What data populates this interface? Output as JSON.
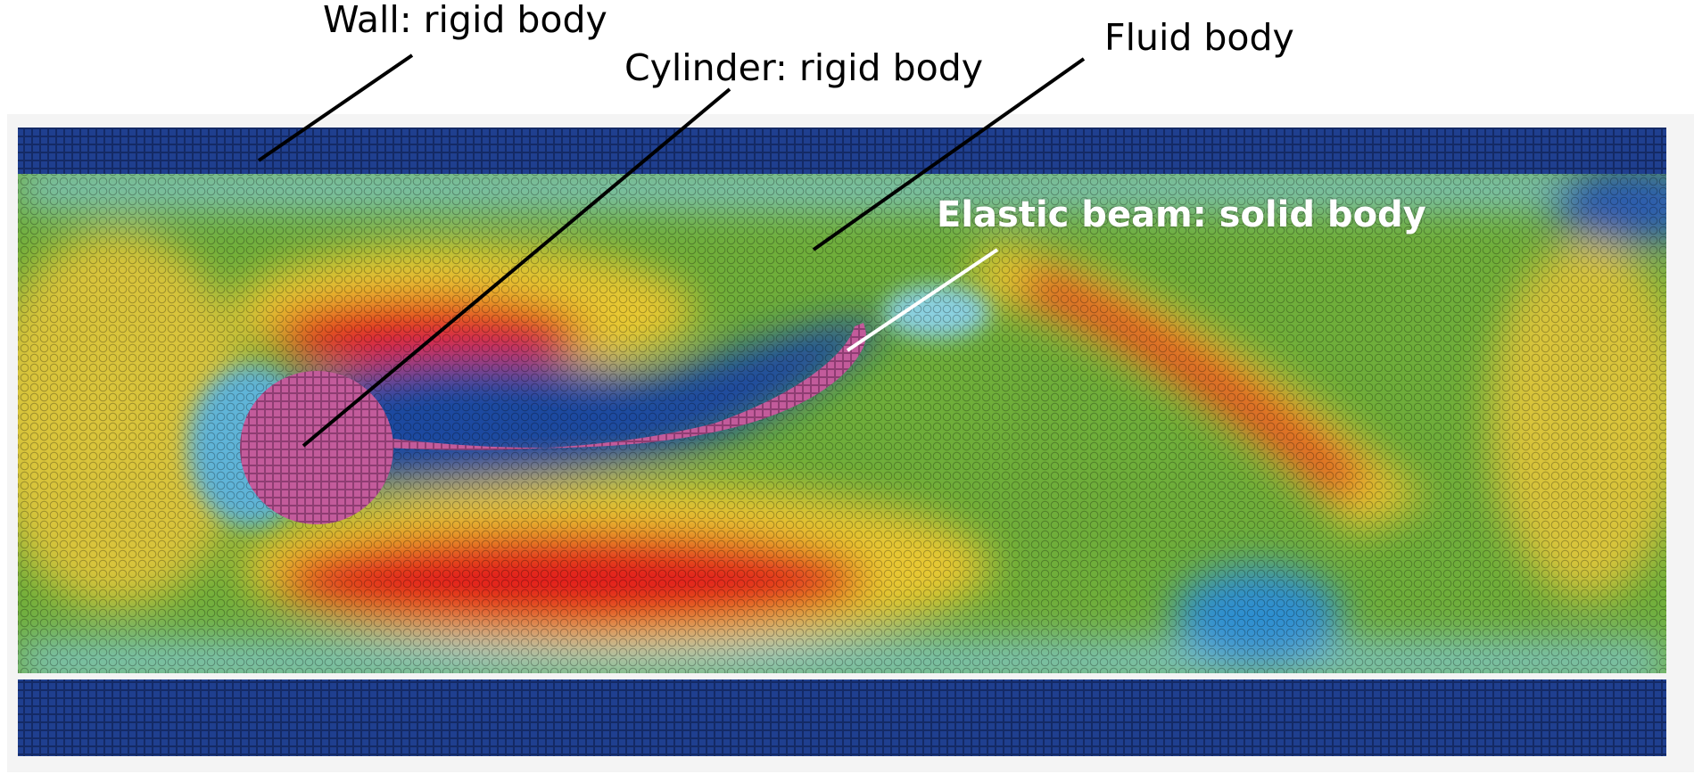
{
  "labels": {
    "wall": "Wall: rigid body",
    "cylinder": "Cylinder: rigid body",
    "fluid": "Fluid body",
    "beam": "Elastic beam: solid body"
  },
  "colors": {
    "background": "#ffffff",
    "wall": "#1f3f8f",
    "solid": "#c35b9b",
    "fluid_low": "#1d4aa0",
    "fluid_mid": "#6fae3a",
    "fluid_high": "#e3241f",
    "leader_dark": "#000000",
    "leader_light": "#ffffff"
  }
}
